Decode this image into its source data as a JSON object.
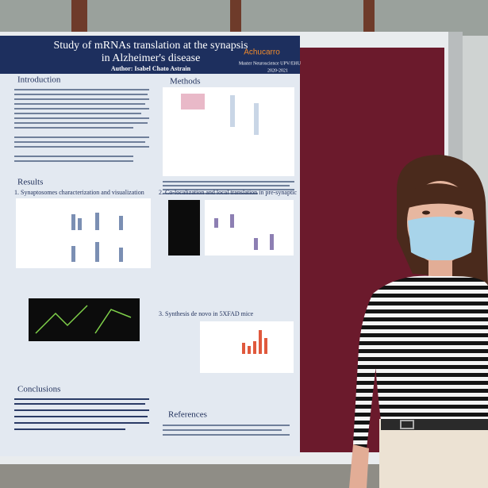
{
  "poster": {
    "title_line1": "Study of mRNAs translation at the synapsis",
    "title_line2": "in Alzheimer's disease",
    "author": "Author: Isabel Chato Astrain",
    "logo": "Achucarro",
    "program": "Master Neuroscience UPV/EHU",
    "year": "2020-2021",
    "sections": {
      "introduction": "Introduction",
      "methods": "Methods",
      "results": "Results",
      "results_1": "1. Synaptosomes characterization and visualization",
      "results_2": "2. Co-localization and local translation in pre-synaptic",
      "results_3": "3. Synthesis de novo in 5XFAD mice",
      "conclusions": "Conclusions",
      "references": "References"
    }
  }
}
